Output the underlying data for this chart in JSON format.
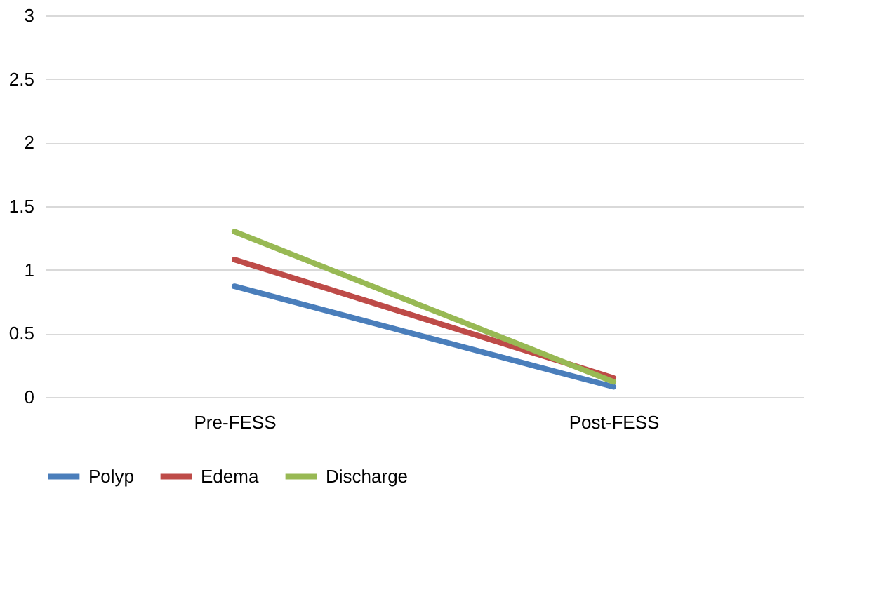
{
  "chart_data": {
    "type": "line",
    "categories": [
      "Pre-FESS",
      "Post-FESS"
    ],
    "series": [
      {
        "name": "Polyp",
        "color": "#4a7ebb",
        "values": [
          0.87,
          0.08
        ]
      },
      {
        "name": "Edema",
        "color": "#be4b48",
        "values": [
          1.08,
          0.15
        ]
      },
      {
        "name": "Discharge",
        "color": "#98b954",
        "values": [
          1.3,
          0.12
        ]
      }
    ],
    "ylim": [
      0,
      3
    ],
    "yticks": [
      0,
      0.5,
      1,
      1.5,
      2,
      2.5,
      3
    ],
    "grid": "y",
    "legend": "bottom",
    "marker": "none",
    "line_style": "solid"
  }
}
